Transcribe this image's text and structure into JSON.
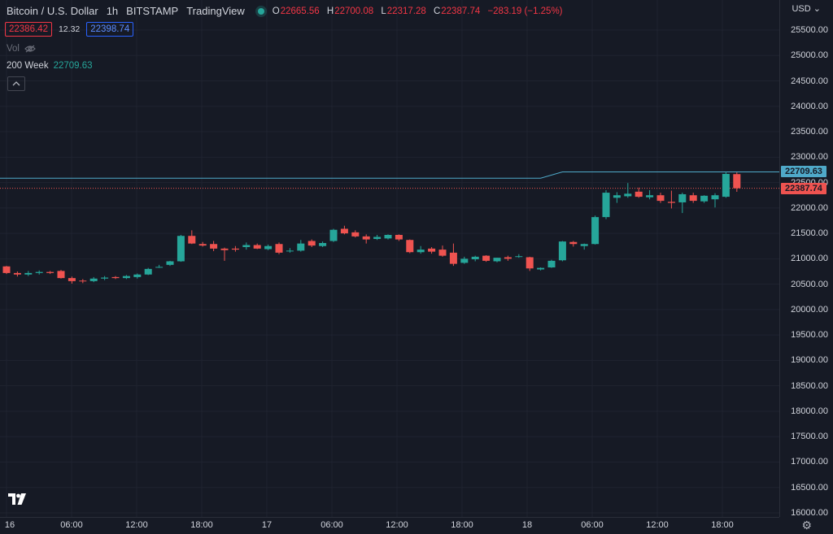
{
  "header": {
    "symbol": "Bitcoin / U.S. Dollar",
    "interval": "1h",
    "exchange": "BITSTAMP",
    "source": "TradingView",
    "status_color": "#26a69a",
    "ohlc": {
      "o_label": "O",
      "o_value": "22665.56",
      "h_label": "H",
      "h_value": "22700.08",
      "l_label": "L",
      "l_value": "22317.28",
      "c_label": "C",
      "c_value": "22387.74",
      "change": "−283.19 (−1.25%)"
    }
  },
  "quote": {
    "bid": "22386.42",
    "spread": "12.32",
    "ask": "22398.74"
  },
  "volume": {
    "label": "Vol",
    "icon": "eye-off-icon"
  },
  "indicator": {
    "name": "200 Week",
    "value": "22709.63"
  },
  "price_axis": {
    "currency": "USD",
    "ticks": [
      "25500.00",
      "25000.00",
      "24500.00",
      "24000.00",
      "23500.00",
      "23000.00",
      "22500.00",
      "22000.00",
      "21500.00",
      "21000.00",
      "20500.00",
      "20000.00",
      "19500.00",
      "19000.00",
      "18500.00",
      "18000.00",
      "17500.00",
      "17000.00",
      "16500.00",
      "16000.00"
    ],
    "ma_tag": "22709.63",
    "hidden_tag": "22500.00",
    "price_tag": "22387.74"
  },
  "time_axis": {
    "ticks": [
      "16",
      "06:00",
      "12:00",
      "18:00",
      "17",
      "06:00",
      "12:00",
      "18:00",
      "18",
      "06:00",
      "12:00",
      "18:00"
    ]
  },
  "colors": {
    "up": "#26a69a",
    "down": "#ef5350",
    "ma": "#4fa9c9",
    "background": "#161a25",
    "grid": "#1f2330"
  },
  "chart_data": {
    "type": "candlestick",
    "title": "Bitcoin / U.S. Dollar, 1h, BITSTAMP",
    "ylim": [
      16000,
      25800
    ],
    "y_ticks": [
      25500,
      25000,
      24500,
      24000,
      23500,
      23000,
      22500,
      22000,
      21500,
      21000,
      20500,
      20000,
      19500,
      19000,
      18500,
      18000,
      17500,
      17000,
      16500,
      16000
    ],
    "x_ticks": [
      "16",
      "06:00",
      "12:00",
      "18:00",
      "17",
      "06:00",
      "12:00",
      "18:00",
      "18",
      "06:00",
      "12:00",
      "18:00"
    ],
    "candles": [
      {
        "o": 20850,
        "h": 20860,
        "l": 20700,
        "c": 20720
      },
      {
        "o": 20720,
        "h": 20750,
        "l": 20650,
        "c": 20690
      },
      {
        "o": 20690,
        "h": 20760,
        "l": 20660,
        "c": 20720
      },
      {
        "o": 20720,
        "h": 20770,
        "l": 20690,
        "c": 20740
      },
      {
        "o": 20740,
        "h": 20760,
        "l": 20700,
        "c": 20720
      },
      {
        "o": 20760,
        "h": 20780,
        "l": 20610,
        "c": 20620
      },
      {
        "o": 20620,
        "h": 20650,
        "l": 20510,
        "c": 20560
      },
      {
        "o": 20570,
        "h": 20600,
        "l": 20520,
        "c": 20560
      },
      {
        "o": 20560,
        "h": 20640,
        "l": 20540,
        "c": 20610
      },
      {
        "o": 20610,
        "h": 20660,
        "l": 20580,
        "c": 20630
      },
      {
        "o": 20640,
        "h": 20660,
        "l": 20600,
        "c": 20620
      },
      {
        "o": 20620,
        "h": 20680,
        "l": 20600,
        "c": 20660
      },
      {
        "o": 20640,
        "h": 20710,
        "l": 20610,
        "c": 20690
      },
      {
        "o": 20690,
        "h": 20820,
        "l": 20680,
        "c": 20800
      },
      {
        "o": 20840,
        "h": 20880,
        "l": 20820,
        "c": 20840
      },
      {
        "o": 20880,
        "h": 20960,
        "l": 20860,
        "c": 20950
      },
      {
        "o": 20950,
        "h": 21470,
        "l": 20940,
        "c": 21450
      },
      {
        "o": 21450,
        "h": 21560,
        "l": 21290,
        "c": 21300
      },
      {
        "o": 21290,
        "h": 21330,
        "l": 21240,
        "c": 21260
      },
      {
        "o": 21290,
        "h": 21350,
        "l": 21150,
        "c": 21200
      },
      {
        "o": 21200,
        "h": 21220,
        "l": 20960,
        "c": 21170
      },
      {
        "o": 21200,
        "h": 21250,
        "l": 21140,
        "c": 21180
      },
      {
        "o": 21230,
        "h": 21320,
        "l": 21180,
        "c": 21270
      },
      {
        "o": 21270,
        "h": 21300,
        "l": 21190,
        "c": 21200
      },
      {
        "o": 21190,
        "h": 21280,
        "l": 21170,
        "c": 21250
      },
      {
        "o": 21290,
        "h": 21320,
        "l": 21090,
        "c": 21120
      },
      {
        "o": 21150,
        "h": 21210,
        "l": 21120,
        "c": 21160
      },
      {
        "o": 21160,
        "h": 21370,
        "l": 21140,
        "c": 21300
      },
      {
        "o": 21350,
        "h": 21380,
        "l": 21230,
        "c": 21260
      },
      {
        "o": 21250,
        "h": 21340,
        "l": 21230,
        "c": 21310
      },
      {
        "o": 21350,
        "h": 21590,
        "l": 21330,
        "c": 21570
      },
      {
        "o": 21590,
        "h": 21650,
        "l": 21480,
        "c": 21500
      },
      {
        "o": 21520,
        "h": 21560,
        "l": 21420,
        "c": 21440
      },
      {
        "o": 21440,
        "h": 21480,
        "l": 21300,
        "c": 21380
      },
      {
        "o": 21390,
        "h": 21470,
        "l": 21370,
        "c": 21430
      },
      {
        "o": 21400,
        "h": 21480,
        "l": 21380,
        "c": 21470
      },
      {
        "o": 21470,
        "h": 21480,
        "l": 21350,
        "c": 21380
      },
      {
        "o": 21370,
        "h": 21380,
        "l": 21110,
        "c": 21130
      },
      {
        "o": 21130,
        "h": 21250,
        "l": 21100,
        "c": 21180
      },
      {
        "o": 21200,
        "h": 21230,
        "l": 21100,
        "c": 21140
      },
      {
        "o": 21180,
        "h": 21260,
        "l": 21040,
        "c": 21060
      },
      {
        "o": 21120,
        "h": 21300,
        "l": 20860,
        "c": 20900
      },
      {
        "o": 20920,
        "h": 21040,
        "l": 20900,
        "c": 21000
      },
      {
        "o": 20990,
        "h": 21060,
        "l": 20950,
        "c": 21040
      },
      {
        "o": 21060,
        "h": 21070,
        "l": 20940,
        "c": 20960
      },
      {
        "o": 20950,
        "h": 21020,
        "l": 20930,
        "c": 21020
      },
      {
        "o": 21030,
        "h": 21060,
        "l": 20960,
        "c": 21000
      },
      {
        "o": 21040,
        "h": 21090,
        "l": 21020,
        "c": 21050
      },
      {
        "o": 21030,
        "h": 21040,
        "l": 20760,
        "c": 20810
      },
      {
        "o": 20790,
        "h": 20830,
        "l": 20770,
        "c": 20820
      },
      {
        "o": 20830,
        "h": 20980,
        "l": 20820,
        "c": 20960
      },
      {
        "o": 20970,
        "h": 21350,
        "l": 20950,
        "c": 21340
      },
      {
        "o": 21330,
        "h": 21350,
        "l": 21240,
        "c": 21290
      },
      {
        "o": 21250,
        "h": 21300,
        "l": 21180,
        "c": 21290
      },
      {
        "o": 21290,
        "h": 21850,
        "l": 21280,
        "c": 21820
      },
      {
        "o": 21820,
        "h": 22350,
        "l": 21780,
        "c": 22300
      },
      {
        "o": 22200,
        "h": 22310,
        "l": 22100,
        "c": 22250
      },
      {
        "o": 22230,
        "h": 22490,
        "l": 22200,
        "c": 22280
      },
      {
        "o": 22320,
        "h": 22400,
        "l": 22200,
        "c": 22220
      },
      {
        "o": 22210,
        "h": 22350,
        "l": 22170,
        "c": 22250
      },
      {
        "o": 22250,
        "h": 22300,
        "l": 22100,
        "c": 22140
      },
      {
        "o": 22120,
        "h": 22340,
        "l": 21990,
        "c": 22100
      },
      {
        "o": 22110,
        "h": 22300,
        "l": 21900,
        "c": 22270
      },
      {
        "o": 22250,
        "h": 22300,
        "l": 22100,
        "c": 22140
      },
      {
        "o": 22130,
        "h": 22250,
        "l": 22100,
        "c": 22240
      },
      {
        "o": 22170,
        "h": 22290,
        "l": 22010,
        "c": 22250
      },
      {
        "o": 22220,
        "h": 22710,
        "l": 22200,
        "c": 22670
      },
      {
        "o": 22665.56,
        "h": 22700.08,
        "l": 22317.28,
        "c": 22387.74
      }
    ],
    "ma_series": {
      "name": "200 Week",
      "points": [
        [
          0,
          22585
        ],
        [
          49,
          22585
        ],
        [
          51,
          22709.63
        ],
        [
          68,
          22709.63
        ]
      ]
    },
    "grid": true
  }
}
